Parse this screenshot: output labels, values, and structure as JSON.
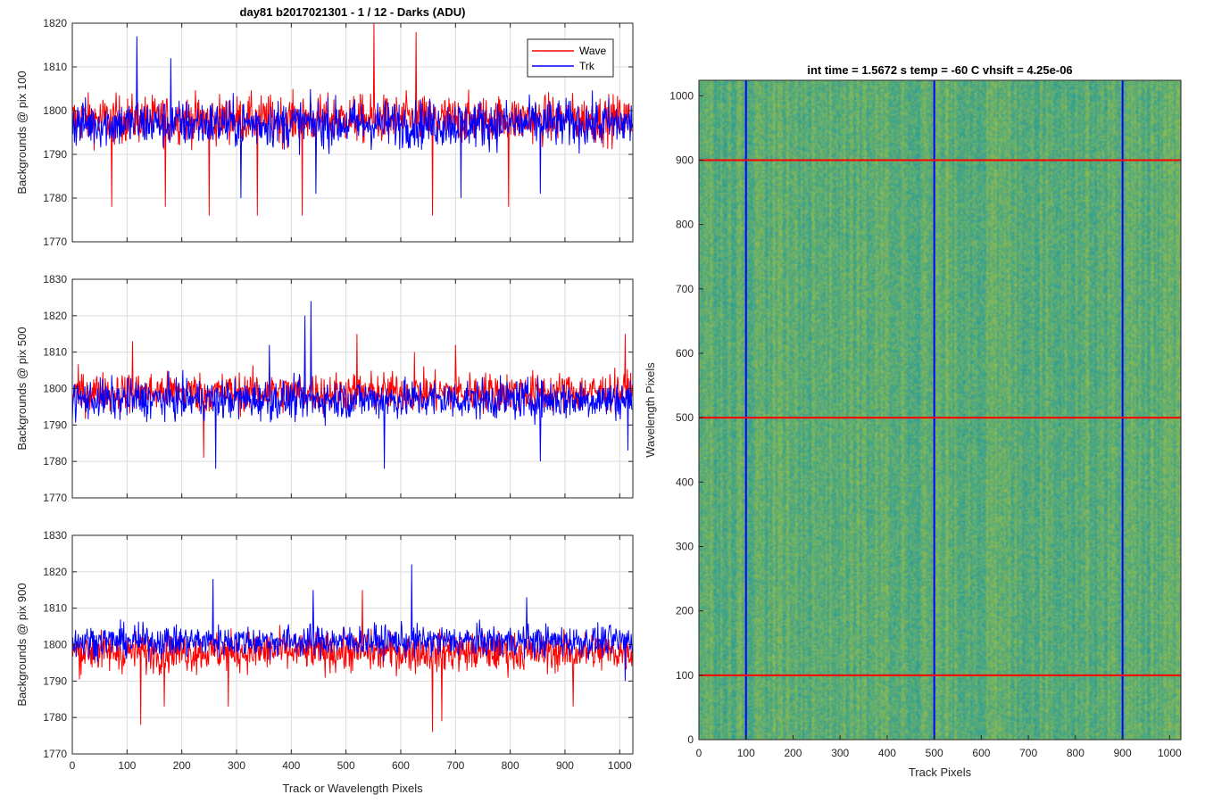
{
  "figure": {
    "title": "day81 b2017021301 - 1 / 12 - Darks (ADU)",
    "colors": {
      "wave": "#ff0000",
      "trk": "#0000ff",
      "grid": "#dcdcdc",
      "axis": "#262626"
    }
  },
  "chart_data": [
    {
      "type": "line",
      "title": "day81 b2017021301 - 1 / 12 - Darks (ADU)",
      "xlabel": "",
      "ylabel": "Backgrounds @ pix 100",
      "xlim": [
        0,
        1024
      ],
      "ylim": [
        1770,
        1820
      ],
      "xticks": [
        0,
        100,
        200,
        300,
        400,
        500,
        600,
        700,
        800,
        900,
        1000
      ],
      "yticks": [
        1770,
        1780,
        1790,
        1800,
        1810,
        1820
      ],
      "grid": true,
      "legend": {
        "placement": "top-right",
        "entries": [
          "Wave",
          "Trk"
        ]
      },
      "series": [
        {
          "name": "Wave",
          "color": "#ff0000",
          "sampling": "noise around mean, 1024 points",
          "mean": 1798,
          "spread": 5,
          "features": [
            [
              72,
              1778
            ],
            [
              170,
              1778
            ],
            [
              250,
              1776
            ],
            [
              338,
              1776
            ],
            [
              420,
              1776
            ],
            [
              551,
              1820
            ],
            [
              628,
              1818
            ],
            [
              658,
              1776
            ],
            [
              797,
              1778
            ]
          ]
        },
        {
          "name": "Trk",
          "color": "#0000ff",
          "sampling": "noise around mean, 1024 points",
          "mean": 1797,
          "spread": 5,
          "features": [
            [
              118,
              1817
            ],
            [
              180,
              1812
            ],
            [
              308,
              1780
            ],
            [
              445,
              1781
            ],
            [
              710,
              1780
            ],
            [
              855,
              1781
            ]
          ]
        }
      ]
    },
    {
      "type": "line",
      "title": "",
      "xlabel": "",
      "ylabel": "Backgrounds @ pix 500",
      "xlim": [
        0,
        1024
      ],
      "ylim": [
        1770,
        1830
      ],
      "xticks": [
        0,
        100,
        200,
        300,
        400,
        500,
        600,
        700,
        800,
        900,
        1000
      ],
      "yticks": [
        1770,
        1780,
        1790,
        1800,
        1810,
        1820,
        1830
      ],
      "grid": true,
      "series": [
        {
          "name": "Wave",
          "color": "#ff0000",
          "sampling": "noise around mean, 1024 points",
          "mean": 1799,
          "spread": 5,
          "features": [
            [
              110,
              1813
            ],
            [
              240,
              1781
            ],
            [
              520,
              1815
            ],
            [
              625,
              1810
            ],
            [
              700,
              1812
            ],
            [
              1010,
              1815
            ]
          ]
        },
        {
          "name": "Trk",
          "color": "#0000ff",
          "sampling": "noise around mean, 1024 points",
          "mean": 1797,
          "spread": 5,
          "features": [
            [
              360,
              1812
            ],
            [
              425,
              1820
            ],
            [
              436,
              1824
            ],
            [
              262,
              1778
            ],
            [
              570,
              1778
            ],
            [
              855,
              1780
            ],
            [
              1015,
              1783
            ]
          ]
        }
      ]
    },
    {
      "type": "line",
      "title": "",
      "xlabel": "Track or Wavelength Pixels",
      "ylabel": "Backgrounds @ pix 900",
      "xlim": [
        0,
        1024
      ],
      "ylim": [
        1770,
        1830
      ],
      "xticks": [
        0,
        100,
        200,
        300,
        400,
        500,
        600,
        700,
        800,
        900,
        1000
      ],
      "yticks": [
        1770,
        1780,
        1790,
        1800,
        1810,
        1820,
        1830
      ],
      "grid": true,
      "series": [
        {
          "name": "Wave",
          "color": "#ff0000",
          "sampling": "noise around mean, 1024 points",
          "mean": 1798,
          "spread": 5,
          "features": [
            [
              125,
              1778
            ],
            [
              168,
              1783
            ],
            [
              285,
              1783
            ],
            [
              530,
              1815
            ],
            [
              658,
              1776
            ],
            [
              675,
              1779
            ],
            [
              915,
              1783
            ]
          ]
        },
        {
          "name": "Trk",
          "color": "#0000ff",
          "sampling": "noise around mean, 1024 points",
          "mean": 1801,
          "spread": 4,
          "features": [
            [
              257,
              1818
            ],
            [
              620,
              1822
            ],
            [
              440,
              1815
            ],
            [
              830,
              1813
            ],
            [
              1010,
              1790
            ]
          ]
        }
      ]
    },
    {
      "type": "heatmap",
      "title": "int time = 1.5672 s    temp = -60 C    vhsift = 4.25e-06",
      "xlabel": "Track Pixels",
      "ylabel": "Wavelength Pixels",
      "xlim": [
        0,
        1024
      ],
      "ylim": [
        0,
        1024
      ],
      "xticks": [
        0,
        100,
        200,
        300,
        400,
        500,
        600,
        700,
        800,
        900,
        1000
      ],
      "yticks": [
        0,
        100,
        200,
        300,
        400,
        500,
        600,
        700,
        800,
        900,
        1000
      ],
      "colormap": "parula (teal-green, near uniform)",
      "vertical_lines": {
        "color": "#0000ff",
        "x": [
          100,
          500,
          900
        ]
      },
      "horizontal_lines": {
        "color": "#ff0000",
        "y": [
          100,
          500,
          900
        ]
      }
    }
  ]
}
